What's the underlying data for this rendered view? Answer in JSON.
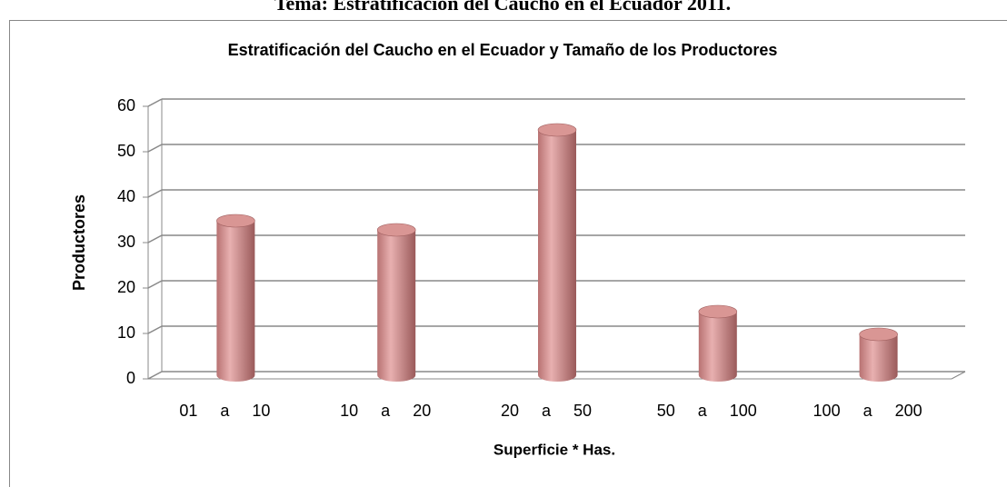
{
  "header": {
    "title": "Tema: Estratificación del Caucho en el Ecuador 2011."
  },
  "chart_data": {
    "type": "bar",
    "title": "Estratificación del Caucho en el Ecuador y Tamaño de los Productores",
    "x_label": "Superficie * Has.",
    "y_label": "Productores",
    "categories": [
      "01 a 10",
      "10 a 20",
      "20 a 50",
      "50 a 100",
      "100 a 200"
    ],
    "values": [
      34,
      32,
      54,
      14,
      9
    ],
    "color": "#d99694",
    "ylim": [
      0,
      60
    ],
    "yticks": [
      0,
      10,
      20,
      30,
      40,
      50,
      60
    ],
    "grid": true
  }
}
